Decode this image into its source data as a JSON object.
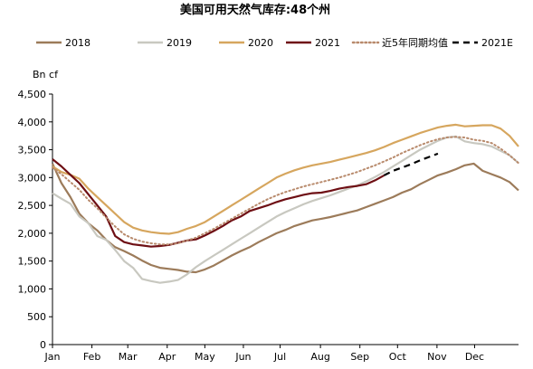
{
  "chart_data": {
    "type": "line",
    "title": "美国可用天然气库存:48个州",
    "ylabel": "Bn cf",
    "ylim": [
      0,
      4500
    ],
    "yticks": [
      0,
      500,
      1000,
      1500,
      2000,
      2500,
      3000,
      3500,
      4000,
      4500
    ],
    "ytick_labels": [
      "0",
      "500",
      "1,000",
      "1,500",
      "2,000",
      "2,500",
      "3,000",
      "3,500",
      "4,000",
      "4,500"
    ],
    "xlim": [
      1,
      53
    ],
    "xticks": [
      1,
      5.4,
      9.4,
      13.8,
      18,
      22.3,
      26.4,
      30.9,
      35.3,
      39.5,
      43.9,
      48.1
    ],
    "xtick_labels": [
      "Jan",
      "Feb",
      "Mar",
      "Apr",
      "May",
      "Jun",
      "Jul",
      "Aug",
      "Sep",
      "Oct",
      "Nov",
      "Dec"
    ],
    "grid": false,
    "legend_position": "top",
    "series": [
      {
        "name": "2018",
        "color": "#9c7b5a",
        "dash": "solid",
        "x": [
          1,
          2,
          3,
          4,
          5,
          6,
          7,
          8,
          9,
          10,
          11,
          12,
          13,
          14,
          15,
          16,
          17,
          18,
          19,
          20,
          21,
          22,
          23,
          24,
          25,
          26,
          27,
          28,
          29,
          30,
          31,
          32,
          33,
          34,
          35,
          36,
          37,
          38,
          39,
          40,
          41,
          42,
          43,
          44,
          45,
          46,
          47,
          48,
          49,
          50,
          51,
          52,
          53
        ],
        "values": [
          3250,
          2900,
          2650,
          2350,
          2180,
          2050,
          1880,
          1750,
          1680,
          1600,
          1510,
          1430,
          1380,
          1360,
          1340,
          1310,
          1300,
          1350,
          1420,
          1510,
          1600,
          1680,
          1750,
          1840,
          1920,
          2000,
          2060,
          2130,
          2180,
          2230,
          2260,
          2290,
          2330,
          2370,
          2410,
          2470,
          2530,
          2590,
          2650,
          2730,
          2790,
          2880,
          2960,
          3040,
          3090,
          3150,
          3220,
          3250,
          3120,
          3060,
          3000,
          2920,
          2770
        ]
      },
      {
        "name": "2019",
        "color": "#c8c8c0",
        "dash": "solid",
        "x": [
          1,
          2,
          3,
          4,
          5,
          6,
          7,
          8,
          9,
          10,
          11,
          12,
          13,
          14,
          15,
          16,
          17,
          18,
          19,
          20,
          21,
          22,
          23,
          24,
          25,
          26,
          27,
          28,
          29,
          30,
          31,
          32,
          33,
          34,
          35,
          36,
          37,
          38,
          39,
          40,
          41,
          42,
          43,
          44,
          45,
          46,
          47,
          48,
          49,
          50,
          51,
          52,
          53
        ],
        "values": [
          2720,
          2620,
          2530,
          2300,
          2180,
          1950,
          1880,
          1700,
          1500,
          1380,
          1180,
          1140,
          1110,
          1130,
          1160,
          1260,
          1390,
          1500,
          1600,
          1700,
          1800,
          1900,
          2000,
          2100,
          2200,
          2300,
          2380,
          2450,
          2520,
          2580,
          2630,
          2680,
          2740,
          2800,
          2860,
          2930,
          3010,
          3100,
          3200,
          3300,
          3400,
          3500,
          3580,
          3660,
          3720,
          3740,
          3650,
          3620,
          3600,
          3560,
          3480,
          3400,
          3260
        ]
      },
      {
        "name": "2020",
        "color": "#d6a65e",
        "dash": "solid",
        "x": [
          1,
          2,
          3,
          4,
          5,
          6,
          7,
          8,
          9,
          10,
          11,
          12,
          13,
          14,
          15,
          16,
          17,
          18,
          19,
          20,
          21,
          22,
          23,
          24,
          25,
          26,
          27,
          28,
          29,
          30,
          31,
          32,
          33,
          34,
          35,
          36,
          37,
          38,
          39,
          40,
          41,
          42,
          43,
          44,
          45,
          46,
          47,
          48,
          49,
          50,
          51,
          52,
          53
        ],
        "values": [
          3200,
          3100,
          3050,
          2980,
          2800,
          2650,
          2500,
          2350,
          2200,
          2100,
          2050,
          2020,
          2000,
          1990,
          2020,
          2080,
          2130,
          2200,
          2300,
          2400,
          2500,
          2600,
          2700,
          2800,
          2900,
          3000,
          3070,
          3130,
          3180,
          3220,
          3250,
          3280,
          3320,
          3360,
          3400,
          3440,
          3490,
          3550,
          3620,
          3680,
          3740,
          3800,
          3850,
          3900,
          3930,
          3950,
          3920,
          3930,
          3940,
          3940,
          3880,
          3750,
          3560
        ]
      },
      {
        "name": "2021",
        "color": "#6e0f14",
        "dash": "solid",
        "x": [
          1,
          2,
          3,
          4,
          5,
          6,
          7,
          8,
          9,
          10,
          11,
          12,
          13,
          14,
          15,
          16,
          17,
          18,
          19,
          20,
          21,
          22,
          23,
          24,
          25,
          26,
          27,
          28,
          29,
          30,
          31,
          32,
          33,
          34,
          35,
          36,
          37,
          38
        ],
        "values": [
          3330,
          3200,
          3050,
          2900,
          2700,
          2500,
          2300,
          1950,
          1840,
          1800,
          1780,
          1760,
          1770,
          1790,
          1830,
          1870,
          1890,
          1960,
          2040,
          2130,
          2230,
          2300,
          2400,
          2450,
          2500,
          2560,
          2610,
          2650,
          2690,
          2720,
          2730,
          2760,
          2800,
          2830,
          2850,
          2880,
          2950,
          3040
        ]
      },
      {
        "name": "近5年同期均值",
        "color": "#b88a6c",
        "dash": "dotted",
        "x": [
          1,
          2,
          3,
          4,
          5,
          6,
          7,
          8,
          9,
          10,
          11,
          12,
          13,
          14,
          15,
          16,
          17,
          18,
          19,
          20,
          21,
          22,
          23,
          24,
          25,
          26,
          27,
          28,
          29,
          30,
          31,
          32,
          33,
          34,
          35,
          36,
          37,
          38,
          39,
          40,
          41,
          42,
          43,
          44,
          45,
          46,
          47,
          48,
          49,
          50,
          51,
          52,
          53
        ],
        "values": [
          3180,
          3060,
          2920,
          2780,
          2600,
          2450,
          2280,
          2120,
          1980,
          1900,
          1850,
          1820,
          1800,
          1800,
          1820,
          1870,
          1920,
          2000,
          2080,
          2170,
          2260,
          2350,
          2440,
          2530,
          2610,
          2680,
          2740,
          2790,
          2840,
          2880,
          2920,
          2960,
          3000,
          3050,
          3100,
          3160,
          3220,
          3290,
          3360,
          3440,
          3510,
          3580,
          3640,
          3690,
          3720,
          3730,
          3720,
          3680,
          3660,
          3620,
          3520,
          3400,
          3260
        ]
      },
      {
        "name": "2021E",
        "color": "#000000",
        "dash": "dashed",
        "x": [
          38,
          39,
          40,
          41,
          42,
          43,
          44
        ],
        "values": [
          3040,
          3120,
          3180,
          3240,
          3310,
          3370,
          3430
        ]
      }
    ]
  }
}
